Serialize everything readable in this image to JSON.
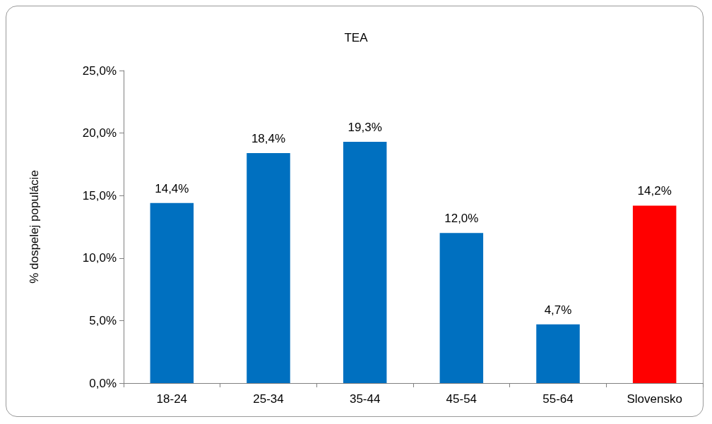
{
  "chart_data": {
    "type": "bar",
    "title": "TEA",
    "ylabel": "% dospelej populácie",
    "categories": [
      "18-24",
      "25-34",
      "35-44",
      "45-54",
      "55-64",
      "Slovensko"
    ],
    "values": [
      14.4,
      18.4,
      19.3,
      12.0,
      4.7,
      14.2
    ],
    "colors": [
      "#0070c0",
      "#0070c0",
      "#0070c0",
      "#0070c0",
      "#0070c0",
      "#ff0000"
    ],
    "value_labels": [
      "14,4%",
      "18,4%",
      "19,3%",
      "12,0%",
      "4,7%",
      "14,2%"
    ],
    "ylim": [
      0,
      25
    ],
    "yticks": [
      {
        "value": 0,
        "label": "0,0%"
      },
      {
        "value": 5,
        "label": "5,0%"
      },
      {
        "value": 10,
        "label": "10,0%"
      },
      {
        "value": 15,
        "label": "15,0%"
      },
      {
        "value": 20,
        "label": "20,0%"
      },
      {
        "value": 25,
        "label": "25,0%"
      }
    ],
    "grid": false
  }
}
